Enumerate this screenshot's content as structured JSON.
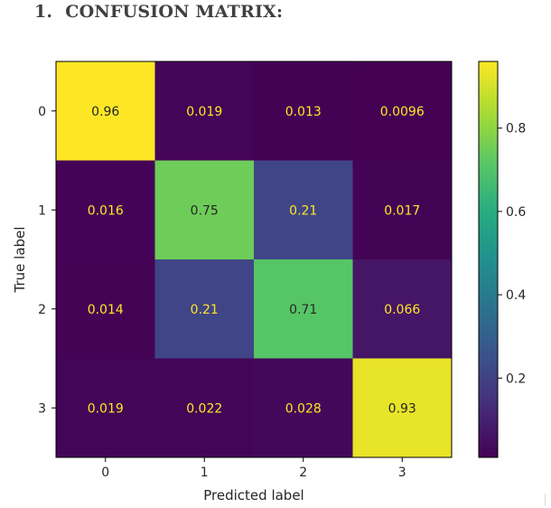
{
  "heading": {
    "number": "1.",
    "text": "CONFUSION MATRIX:"
  },
  "chart_data": {
    "type": "heatmap",
    "title": "",
    "xlabel": "Predicted label",
    "ylabel": "True label",
    "x_categories": [
      "0",
      "1",
      "2",
      "3"
    ],
    "y_categories": [
      "0",
      "1",
      "2",
      "3"
    ],
    "values": [
      [
        0.96,
        0.019,
        0.013,
        0.0096
      ],
      [
        0.016,
        0.75,
        0.21,
        0.017
      ],
      [
        0.014,
        0.21,
        0.71,
        0.066
      ],
      [
        0.019,
        0.022,
        0.028,
        0.93
      ]
    ],
    "cell_labels": [
      [
        "0.96",
        "0.019",
        "0.013",
        "0.0096"
      ],
      [
        "0.016",
        "0.75",
        "0.21",
        "0.017"
      ],
      [
        "0.014",
        "0.21",
        "0.71",
        "0.066"
      ],
      [
        "0.019",
        "0.022",
        "0.028",
        "0.93"
      ]
    ],
    "colormap": "viridis",
    "color_range": [
      0.0096,
      0.96
    ],
    "colorbar_ticks": [
      0.2,
      0.4,
      0.6,
      0.8
    ],
    "colorbar_tick_labels": [
      "0.2",
      "0.4",
      "0.6",
      "0.8"
    ],
    "text_colors": {
      "dark": "#262626",
      "light": "#fde725"
    }
  }
}
